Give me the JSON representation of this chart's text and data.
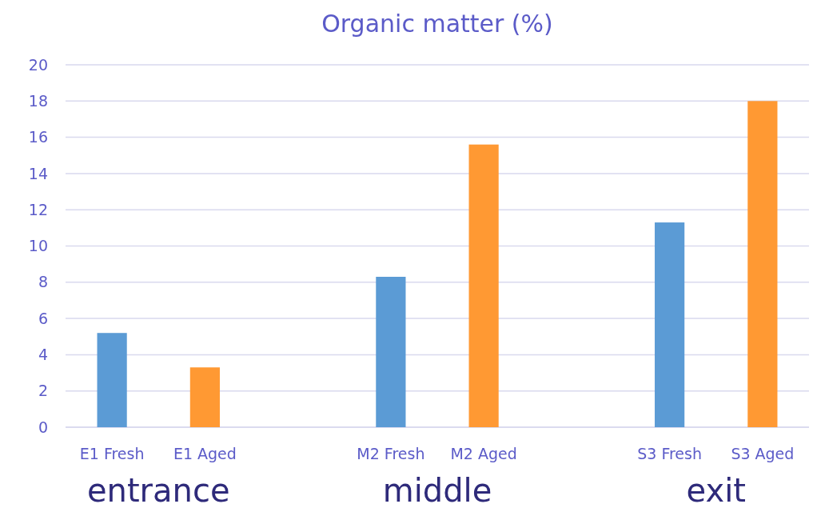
{
  "chart_data": {
    "type": "bar",
    "title": "Organic matter (%)",
    "categories": [
      "E1 Fresh",
      "E1 Aged",
      null,
      "M2 Fresh",
      "M2 Aged",
      null,
      "S3 Fresh",
      "S3 Aged"
    ],
    "values": [
      5.2,
      3.3,
      null,
      8.3,
      15.6,
      null,
      11.3,
      18.0
    ],
    "colors": [
      "#5b9bd5",
      "#ff9933",
      null,
      "#5b9bd5",
      "#ff9933",
      null,
      "#5b9bd5",
      "#ff9933"
    ],
    "ylim": [
      0,
      20
    ],
    "yticks": [
      0,
      2,
      4,
      6,
      8,
      10,
      12,
      14,
      16,
      18,
      20
    ],
    "grid": "y",
    "annotations": [
      "entrance",
      "middle",
      "exit"
    ]
  }
}
